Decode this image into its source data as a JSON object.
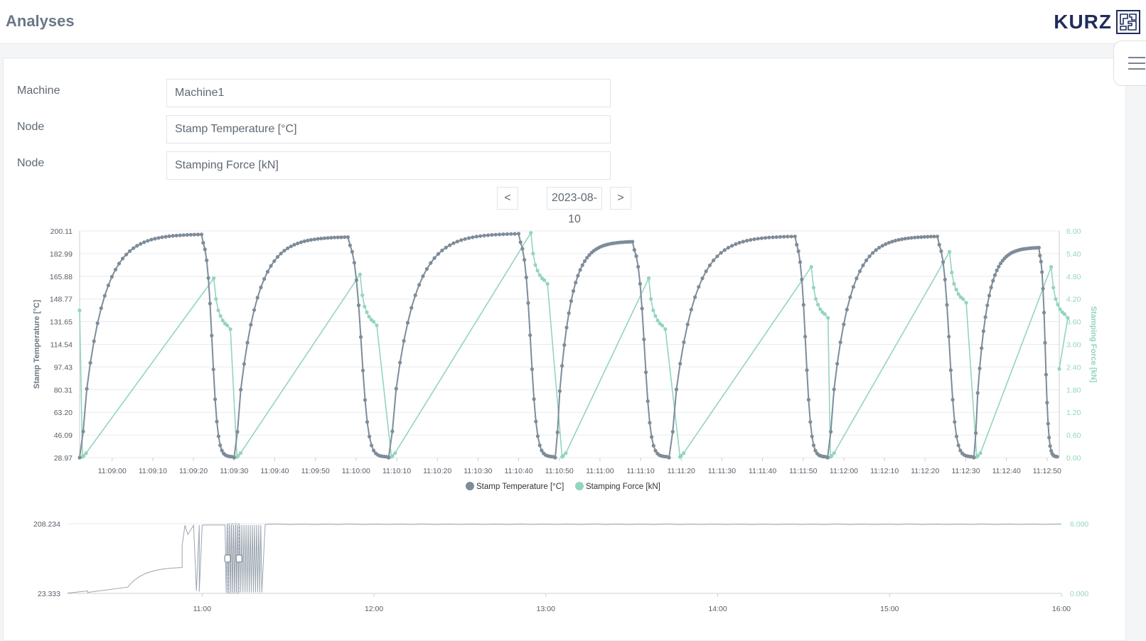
{
  "header": {
    "title": "Analyses",
    "logo_text": "KURZ",
    "icons": {
      "logo": "kurz-logo-icon",
      "menu": "hamburger-menu-icon"
    }
  },
  "form": {
    "machine_label": "Machine",
    "machine_value": "Machine1",
    "node1_label": "Node",
    "node1_value": "Stamp Temperature [°C]",
    "node2_label": "Node",
    "node2_value": "Stamping Force [kN]"
  },
  "date_nav": {
    "prev_label": "<",
    "date": "2023-08-10",
    "next_label": ">"
  },
  "colors": {
    "temperature": "#7e8c99",
    "force": "#93d5bd",
    "grid": "#e7eaee",
    "axis_text": "#555e68"
  },
  "chart_data": [
    {
      "type": "line",
      "x_axis_type": "time",
      "x_ticks": [
        "11:09:00",
        "11:09:10",
        "11:09:20",
        "11:09:30",
        "11:09:40",
        "11:09:50",
        "11:10:00",
        "11:10:10",
        "11:10:20",
        "11:10:30",
        "11:10:40",
        "11:10:50",
        "11:11:00",
        "11:11:10",
        "11:11:20",
        "11:11:30",
        "11:11:40",
        "11:11:50",
        "11:12:00",
        "11:12:10",
        "11:12:20",
        "11:12:30",
        "11:12:40",
        "11:12:50"
      ],
      "x_range": [
        "11:08:52",
        "11:12:53"
      ],
      "ylabel": "Stamp Temperature [°C]",
      "y2label": "Stamping Force [kN]",
      "y_ticks": [
        "200.11",
        "182.99",
        "165.88",
        "148.77",
        "131.65",
        "114.54",
        "97.43",
        "80.31",
        "63.20",
        "46.09",
        "28.97"
      ],
      "y2_ticks": [
        "6.00",
        "5.40",
        "4.80",
        "4.20",
        "3.60",
        "3.00",
        "2.40",
        "1.80",
        "1.20",
        "0.60",
        "0.00"
      ],
      "ylim": [
        28.97,
        200.11
      ],
      "y2lim": [
        0,
        6
      ],
      "legend": "bottom-center",
      "grid": true,
      "cycles_temperature": [
        {
          "start": "11:08:52",
          "peak": "11:09:22",
          "peak_value": 197.5
        },
        {
          "start": "11:09:30",
          "peak": "11:09:58",
          "peak_value": 195.5
        },
        {
          "start": "11:10:08",
          "peak": "11:10:40",
          "peak_value": 198.0
        },
        {
          "start": "11:10:49",
          "peak": "11:11:08",
          "peak_value": 192.0
        },
        {
          "start": "11:11:17",
          "peak": "11:11:48",
          "peak_value": 196.0
        },
        {
          "start": "11:11:56",
          "peak": "11:12:23",
          "peak_value": 196.0
        },
        {
          "start": "11:12:32",
          "peak": "11:12:48",
          "peak_value": 187.5
        }
      ],
      "cycles_force": [
        {
          "start": "11:08:53",
          "peak": "11:09:25",
          "peak_value": 4.75
        },
        {
          "start": "11:09:31",
          "peak": "11:10:01",
          "peak_value": 4.85
        },
        {
          "start": "11:10:09",
          "peak": "11:10:43",
          "peak_value": 5.95
        },
        {
          "start": "11:10:51",
          "peak": "11:11:12",
          "peak_value": 4.75
        },
        {
          "start": "11:11:20",
          "peak": "11:11:52",
          "peak_value": 5.05
        },
        {
          "start": "11:11:57",
          "peak": "11:12:26",
          "peak_value": 5.45
        },
        {
          "start": "11:12:33",
          "peak": "11:12:51",
          "peak_value": 5.05
        }
      ],
      "series": [
        {
          "name": "Stamp Temperature [°C]",
          "axis": "left"
        },
        {
          "name": "Stamping Force [kN]",
          "axis": "right"
        }
      ],
      "initial_force_value": 3.9
    },
    {
      "type": "line",
      "x_axis_type": "time",
      "x_ticks": [
        "11:00",
        "12:00",
        "13:00",
        "14:00",
        "15:00",
        "16:00"
      ],
      "x_range": [
        "10:13",
        "16:00"
      ],
      "y_ticks": [
        "208.234",
        "23.333"
      ],
      "y2_ticks": [
        "6.000",
        "0.000"
      ],
      "ylim": [
        23.333,
        208.234
      ],
      "y2lim": [
        0,
        6
      ],
      "selection_range": [
        "11:08:52",
        "11:12:53"
      ]
    }
  ]
}
